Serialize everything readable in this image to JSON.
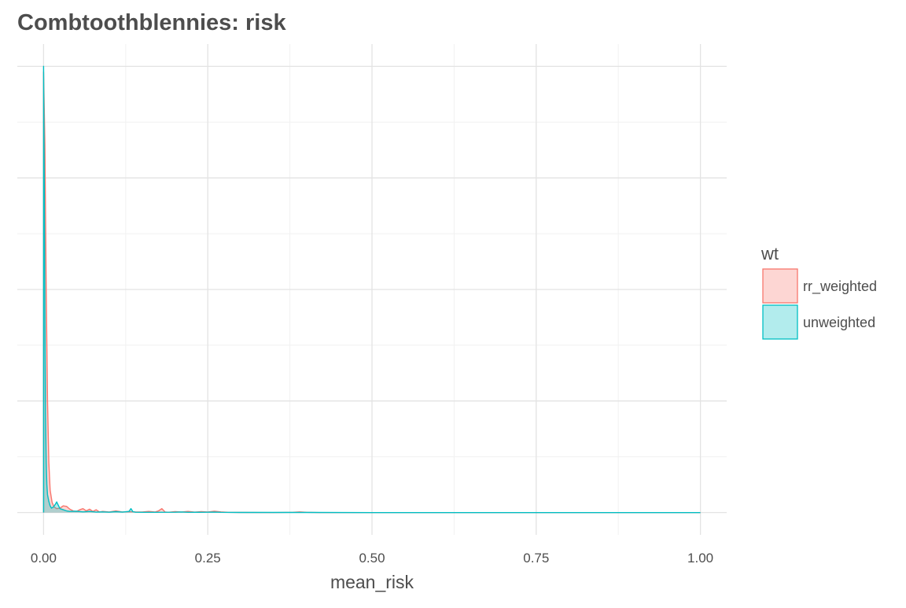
{
  "chart_data": {
    "type": "area",
    "title": "Combtoothblennies: risk",
    "xlabel": "mean_risk",
    "ylabel": "",
    "xlim": [
      -0.04,
      1.04
    ],
    "ylim": [
      -2,
      42
    ],
    "x_ticks": [
      0,
      0.25,
      0.5,
      0.75,
      1.0
    ],
    "x_tick_labels": [
      "0.00",
      "0.25",
      "0.50",
      "0.75",
      "1.00"
    ],
    "y_grid": [
      0,
      10,
      20,
      30,
      40
    ],
    "y_ticks_labeled": false,
    "grid": true,
    "legend": {
      "title": "wt",
      "position": "right"
    },
    "series": [
      {
        "name": "rr_weighted",
        "color": "#F8766D",
        "fill": "#F8766D",
        "fill_opacity": 0.3,
        "x": [
          0,
          0.002,
          0.004,
          0.006,
          0.008,
          0.01,
          0.013,
          0.016,
          0.02,
          0.025,
          0.03,
          0.035,
          0.04,
          0.045,
          0.05,
          0.055,
          0.06,
          0.065,
          0.07,
          0.075,
          0.08,
          0.085,
          0.09,
          0.1,
          0.11,
          0.12,
          0.13,
          0.14,
          0.15,
          0.16,
          0.17,
          0.175,
          0.18,
          0.185,
          0.19,
          0.2,
          0.21,
          0.22,
          0.23,
          0.24,
          0.25,
          0.26,
          0.27,
          0.28,
          0.3,
          0.35,
          0.38,
          0.39,
          0.4,
          0.42,
          0.5,
          0.75,
          1.0
        ],
        "y": [
          39.5,
          33.0,
          20.0,
          10.0,
          4.5,
          2.0,
          0.9,
          0.5,
          0.35,
          0.4,
          0.6,
          0.55,
          0.3,
          0.15,
          0.1,
          0.25,
          0.35,
          0.15,
          0.3,
          0.1,
          0.25,
          0.05,
          0.1,
          0.05,
          0.15,
          0.05,
          0.08,
          0.05,
          0.05,
          0.1,
          0.05,
          0.15,
          0.35,
          0.05,
          0.02,
          0.08,
          0.05,
          0.1,
          0.04,
          0.08,
          0.05,
          0.12,
          0.06,
          0.02,
          0.01,
          0.0,
          0.02,
          0.06,
          0.02,
          0.0,
          0.0,
          0.0,
          0.0
        ]
      },
      {
        "name": "unweighted",
        "color": "#00BFC4",
        "fill": "#00BFC4",
        "fill_opacity": 0.3,
        "x": [
          0,
          0.001,
          0.002,
          0.003,
          0.004,
          0.005,
          0.006,
          0.008,
          0.01,
          0.012,
          0.015,
          0.018,
          0.02,
          0.022,
          0.025,
          0.03,
          0.035,
          0.04,
          0.05,
          0.06,
          0.07,
          0.08,
          0.09,
          0.1,
          0.11,
          0.12,
          0.13,
          0.133,
          0.136,
          0.14,
          0.15,
          0.17,
          0.2,
          0.21,
          0.22,
          0.25,
          0.26,
          0.27,
          0.3,
          0.4,
          0.5,
          0.75,
          1.0
        ],
        "y": [
          40.0,
          30.0,
          18.0,
          9.0,
          4.5,
          2.5,
          1.6,
          1.0,
          0.6,
          0.4,
          0.5,
          0.75,
          0.95,
          0.7,
          0.35,
          0.25,
          0.15,
          0.1,
          0.12,
          0.06,
          0.1,
          0.04,
          0.06,
          0.03,
          0.08,
          0.04,
          0.1,
          0.35,
          0.08,
          0.03,
          0.02,
          0.02,
          0.03,
          0.05,
          0.02,
          0.03,
          0.04,
          0.02,
          0.01,
          0.01,
          0.0,
          0.0,
          0.0
        ]
      }
    ]
  }
}
